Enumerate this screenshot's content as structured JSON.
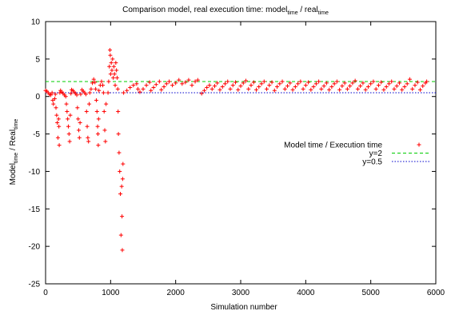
{
  "chart_data": {
    "type": "scatter",
    "title": {
      "prefix": "Comparison model, real execution time: model",
      "sub1": "time",
      "mid": " / real",
      "sub2": "time"
    },
    "xlabel": "Simulation number",
    "ylabel": {
      "part1": "Model",
      "sub1": "time",
      "mid": " / Real",
      "sub2": "time"
    },
    "xlim": [
      0,
      6000
    ],
    "ylim": [
      -25,
      10
    ],
    "xticks": [
      0,
      1000,
      2000,
      3000,
      4000,
      5000,
      6000
    ],
    "yticks": [
      -25,
      -20,
      -15,
      -10,
      -5,
      0,
      5,
      10
    ],
    "grid": false,
    "legend_position": "right",
    "series": [
      {
        "name": "Model time / Execution time",
        "style": "points",
        "marker": "+",
        "color": "#ff0000",
        "points": [
          [
            0,
            0.8
          ],
          [
            20,
            0.7
          ],
          [
            40,
            0.5
          ],
          [
            60,
            0.3
          ],
          [
            80,
            0.2
          ],
          [
            100,
            0.5
          ],
          [
            110,
            -0.5
          ],
          [
            120,
            -1.0
          ],
          [
            140,
            -0.3
          ],
          [
            150,
            0.3
          ],
          [
            160,
            -1.5
          ],
          [
            170,
            -2.5
          ],
          [
            180,
            -3.5
          ],
          [
            190,
            -5.5
          ],
          [
            200,
            -3.0
          ],
          [
            205,
            -4.0
          ],
          [
            210,
            -6.5
          ],
          [
            220,
            0.5
          ],
          [
            230,
            0.8
          ],
          [
            250,
            0.6
          ],
          [
            270,
            0.4
          ],
          [
            290,
            0.2
          ],
          [
            310,
            0.0
          ],
          [
            320,
            -1.0
          ],
          [
            330,
            -2.0
          ],
          [
            340,
            -3.0
          ],
          [
            350,
            -4.0
          ],
          [
            360,
            -5.0
          ],
          [
            370,
            -6.0
          ],
          [
            380,
            -2.5
          ],
          [
            390,
            0.4
          ],
          [
            400,
            0.9
          ],
          [
            420,
            0.8
          ],
          [
            440,
            0.6
          ],
          [
            460,
            0.4
          ],
          [
            480,
            0.2
          ],
          [
            490,
            -1.5
          ],
          [
            500,
            -3.0
          ],
          [
            510,
            -4.5
          ],
          [
            520,
            -5.5
          ],
          [
            530,
            -3.5
          ],
          [
            540,
            0.3
          ],
          [
            560,
            0.9
          ],
          [
            580,
            0.7
          ],
          [
            600,
            0.5
          ],
          [
            620,
            0.3
          ],
          [
            630,
            -2.0
          ],
          [
            640,
            -4.0
          ],
          [
            650,
            -5.5
          ],
          [
            660,
            -6.0
          ],
          [
            670,
            -1.0
          ],
          [
            680,
            0.5
          ],
          [
            700,
            1.0
          ],
          [
            720,
            1.8
          ],
          [
            740,
            2.3
          ],
          [
            760,
            1.9
          ],
          [
            770,
            1.0
          ],
          [
            780,
            -0.5
          ],
          [
            790,
            -2.0
          ],
          [
            800,
            -4.0
          ],
          [
            805,
            -5.0
          ],
          [
            810,
            -6.5
          ],
          [
            815,
            -3.0
          ],
          [
            820,
            0.8
          ],
          [
            840,
            1.5
          ],
          [
            860,
            2.0
          ],
          [
            880,
            1.5
          ],
          [
            890,
            0.5
          ],
          [
            900,
            -2.0
          ],
          [
            910,
            -4.5
          ],
          [
            920,
            -6.0
          ],
          [
            930,
            -1.0
          ],
          [
            960,
            0.5
          ],
          [
            970,
            2.0
          ],
          [
            980,
            4.0
          ],
          [
            990,
            6.2
          ],
          [
            995,
            5.5
          ],
          [
            1000,
            3.0
          ],
          [
            1010,
            4.5
          ],
          [
            1020,
            3.5
          ],
          [
            1030,
            5.0
          ],
          [
            1040,
            2.5
          ],
          [
            1050,
            4.0
          ],
          [
            1060,
            3.0
          ],
          [
            1070,
            1.5
          ],
          [
            1080,
            4.5
          ],
          [
            1090,
            3.5
          ],
          [
            1100,
            2.5
          ],
          [
            1110,
            1.0
          ],
          [
            1115,
            -2.0
          ],
          [
            1120,
            -5.0
          ],
          [
            1130,
            -7.5
          ],
          [
            1140,
            -10.0
          ],
          [
            1150,
            -13.0
          ],
          [
            1160,
            -18.5
          ],
          [
            1170,
            -12.0
          ],
          [
            1175,
            -16.0
          ],
          [
            1180,
            -20.5
          ],
          [
            1185,
            -11.0
          ],
          [
            1190,
            -9.0
          ],
          [
            1200,
            0.5
          ],
          [
            1250,
            0.8
          ],
          [
            1300,
            1.2
          ],
          [
            1350,
            1.5
          ],
          [
            1400,
            1.7
          ],
          [
            1420,
            1.0
          ],
          [
            1450,
            0.6
          ],
          [
            1500,
            1.0
          ],
          [
            1550,
            1.5
          ],
          [
            1600,
            1.9
          ],
          [
            1620,
            0.8
          ],
          [
            1660,
            1.2
          ],
          [
            1700,
            1.6
          ],
          [
            1750,
            2.0
          ],
          [
            1780,
            0.9
          ],
          [
            1820,
            1.3
          ],
          [
            1860,
            1.7
          ],
          [
            1900,
            2.0
          ],
          [
            1950,
            1.5
          ],
          [
            2000,
            1.8
          ],
          [
            2050,
            2.2
          ],
          [
            2100,
            1.7
          ],
          [
            2150,
            1.9
          ],
          [
            2200,
            2.2
          ],
          [
            2250,
            1.5
          ],
          [
            2300,
            2.0
          ],
          [
            2340,
            2.2
          ],
          [
            2400,
            0.4
          ],
          [
            2440,
            0.8
          ],
          [
            2480,
            1.2
          ],
          [
            2520,
            1.5
          ],
          [
            2560,
            1.0
          ],
          [
            2600,
            1.4
          ],
          [
            2640,
            1.8
          ],
          [
            2680,
            0.9
          ],
          [
            2720,
            1.3
          ],
          [
            2760,
            1.7
          ],
          [
            2800,
            2.0
          ],
          [
            2840,
            1.0
          ],
          [
            2880,
            1.5
          ],
          [
            2920,
            1.9
          ],
          [
            2960,
            0.9
          ],
          [
            3000,
            1.4
          ],
          [
            3040,
            1.8
          ],
          [
            3080,
            2.1
          ],
          [
            3120,
            1.0
          ],
          [
            3160,
            1.5
          ],
          [
            3200,
            1.9
          ],
          [
            3240,
            0.9
          ],
          [
            3280,
            1.3
          ],
          [
            3320,
            1.7
          ],
          [
            3360,
            2.0
          ],
          [
            3400,
            1.0
          ],
          [
            3440,
            1.5
          ],
          [
            3480,
            1.9
          ],
          [
            3520,
            0.8
          ],
          [
            3560,
            1.3
          ],
          [
            3600,
            1.7
          ],
          [
            3640,
            2.0
          ],
          [
            3680,
            1.0
          ],
          [
            3720,
            1.4
          ],
          [
            3760,
            1.8
          ],
          [
            3800,
            0.9
          ],
          [
            3840,
            1.3
          ],
          [
            3880,
            1.7
          ],
          [
            3920,
            2.0
          ],
          [
            3960,
            1.0
          ],
          [
            4000,
            1.5
          ],
          [
            4040,
            1.9
          ],
          [
            4080,
            0.9
          ],
          [
            4120,
            1.3
          ],
          [
            4160,
            1.7
          ],
          [
            4200,
            2.0
          ],
          [
            4240,
            1.0
          ],
          [
            4280,
            1.4
          ],
          [
            4320,
            1.8
          ],
          [
            4360,
            0.9
          ],
          [
            4400,
            1.3
          ],
          [
            4440,
            1.7
          ],
          [
            4480,
            2.0
          ],
          [
            4520,
            0.9
          ],
          [
            4560,
            1.4
          ],
          [
            4600,
            1.8
          ],
          [
            4640,
            1.0
          ],
          [
            4680,
            1.4
          ],
          [
            4720,
            1.8
          ],
          [
            4760,
            2.1
          ],
          [
            4800,
            1.0
          ],
          [
            4840,
            1.4
          ],
          [
            4880,
            1.8
          ],
          [
            4920,
            0.9
          ],
          [
            4960,
            1.3
          ],
          [
            5000,
            1.7
          ],
          [
            5040,
            2.0
          ],
          [
            5080,
            1.0
          ],
          [
            5120,
            1.5
          ],
          [
            5160,
            1.9
          ],
          [
            5200,
            0.9
          ],
          [
            5240,
            1.3
          ],
          [
            5280,
            1.7
          ],
          [
            5320,
            2.0
          ],
          [
            5360,
            1.0
          ],
          [
            5400,
            1.4
          ],
          [
            5440,
            1.8
          ],
          [
            5480,
            0.9
          ],
          [
            5520,
            1.3
          ],
          [
            5560,
            1.7
          ],
          [
            5600,
            2.3
          ],
          [
            5640,
            1.0
          ],
          [
            5680,
            1.5
          ],
          [
            5720,
            1.9
          ],
          [
            5760,
            0.9
          ],
          [
            5800,
            1.4
          ],
          [
            5840,
            1.8
          ],
          [
            5860,
            2.0
          ]
        ]
      },
      {
        "name": "y=2",
        "style": "line",
        "dash": "dashed",
        "color": "#00cc00",
        "x": [
          0,
          6000
        ],
        "y": [
          2,
          2
        ]
      },
      {
        "name": "y=0.5",
        "style": "line",
        "dash": "dotted",
        "color": "#0000cc",
        "x": [
          0,
          6000
        ],
        "y": [
          0.5,
          0.5
        ]
      }
    ]
  }
}
